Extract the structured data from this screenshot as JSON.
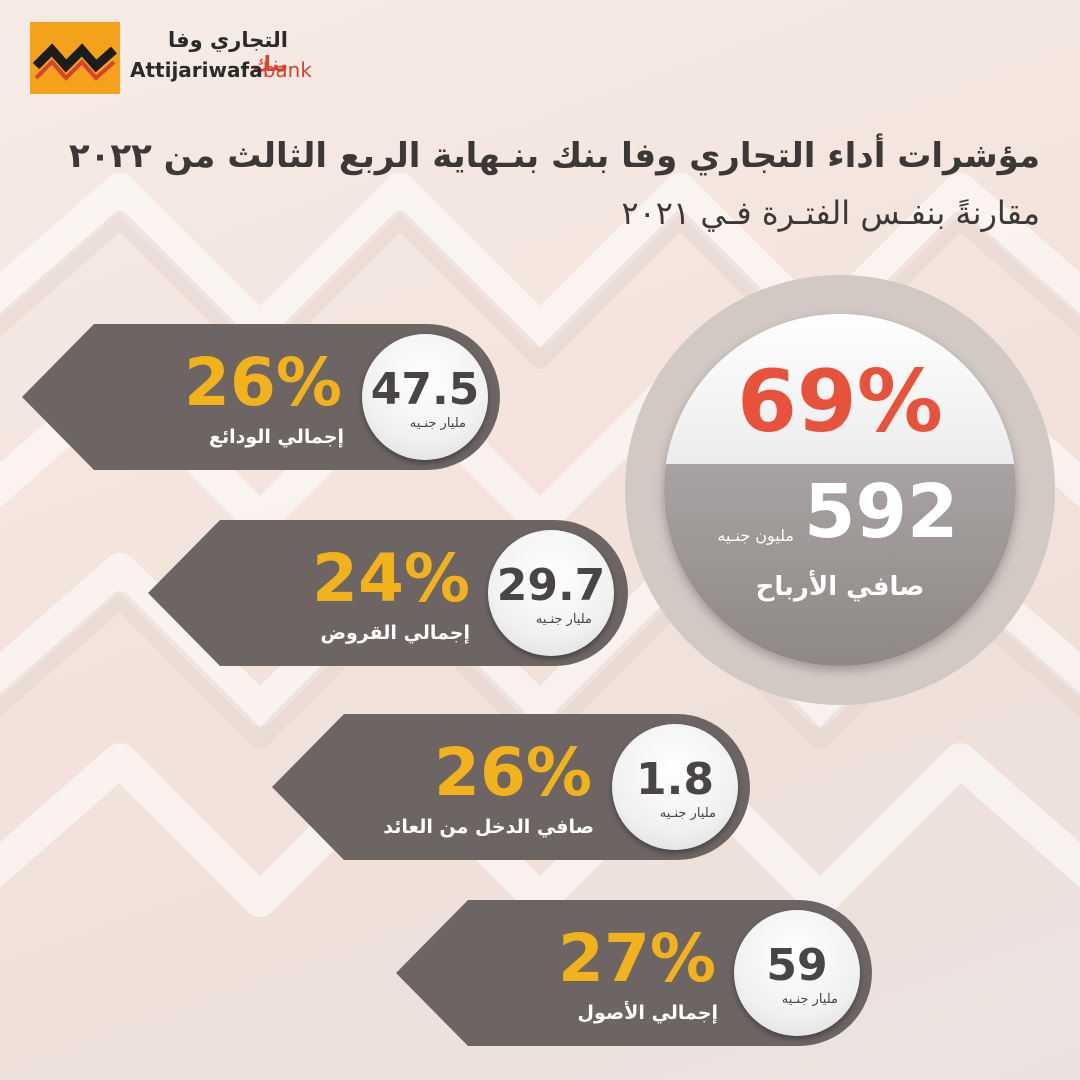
{
  "logo": {
    "arabic_main": "التجاري وفا",
    "arabic_bank": "بنك",
    "english_main": "Attijariwafa",
    "english_bank": "bank"
  },
  "title": "مؤشرات أداء التجاري وفا بنك بنـهاية الربع الثالث من ٢٠٢٢",
  "subtitle": "مقارنةً بنفـس الفتـرة فـي ٢٠٢١",
  "highlight": {
    "percent": "69%",
    "value": "592",
    "unit": "مليون جنـيه",
    "label": "صافي الأرباح"
  },
  "metrics": [
    {
      "percent": "26%",
      "value": "47.5",
      "unit": "مليار جنـيه",
      "label": "إجمالي الودائع"
    },
    {
      "percent": "24%",
      "value": "29.7",
      "unit": "مليار جنـيه",
      "label": "إجمالي القروض"
    },
    {
      "percent": "26%",
      "value": "1.8",
      "unit": "مليار جنـيه",
      "label": "صافي الدخل من العائد"
    },
    {
      "percent": "27%",
      "value": "59",
      "unit": "مليار جنـيه",
      "label": "إجمالي الأصول"
    }
  ],
  "colors": {
    "accent_red": "#e6533a",
    "accent_yellow": "#f2b21c",
    "banner_gray": "#6c6564",
    "logo_orange": "#f4a11b"
  }
}
